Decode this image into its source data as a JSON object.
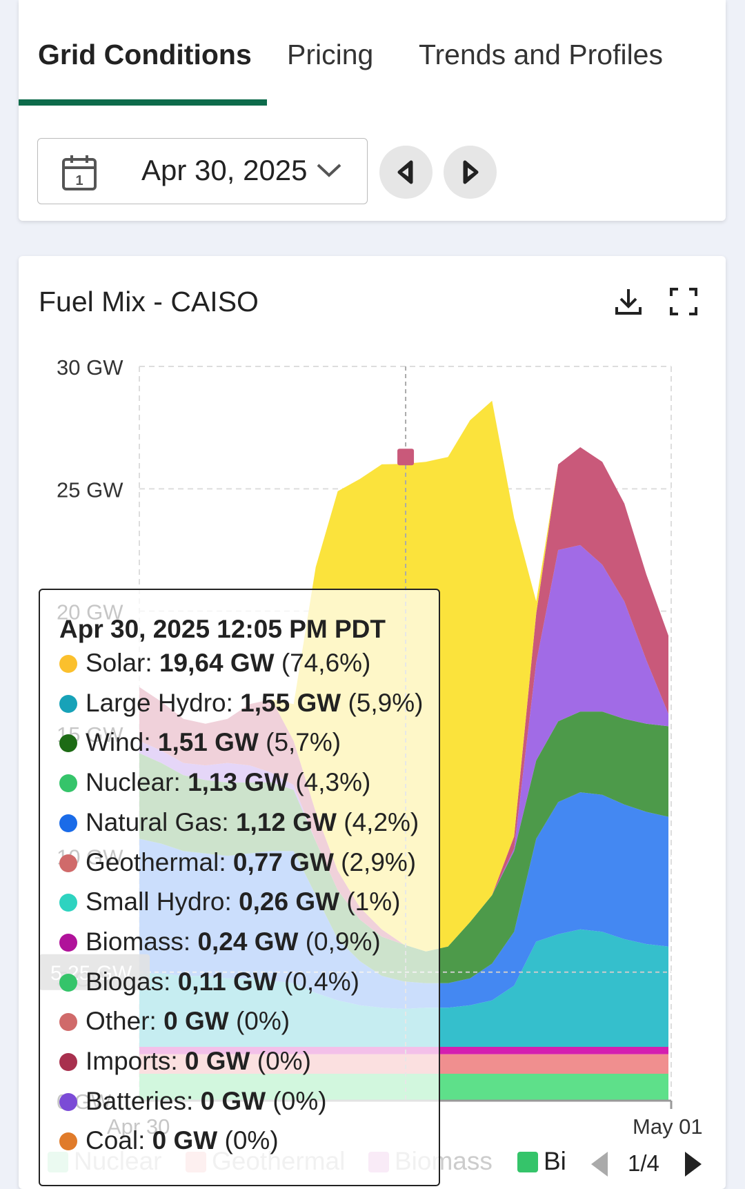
{
  "tabs": [
    {
      "label": "Grid Conditions",
      "active": true
    },
    {
      "label": "Pricing",
      "active": false
    },
    {
      "label": "Trends and Profiles",
      "active": false
    }
  ],
  "date_picker": {
    "value": "Apr 30, 2025",
    "icon": "calendar-icon"
  },
  "nav": {
    "prev_icon": "caret-left-icon",
    "next_icon": "caret-right-icon"
  },
  "chart_card": {
    "title": "Fuel Mix - CAISO",
    "download_icon": "download-icon",
    "fullscreen_icon": "fullscreen-icon"
  },
  "chart_data": {
    "type": "area",
    "stacked": true,
    "title": "Fuel Mix - CAISO",
    "y_ticks": [
      "0 GW",
      "5 GW",
      "10 GW",
      "15 GW",
      "20 GW",
      "25 GW",
      "30 GW"
    ],
    "y_range": [
      0,
      30
    ],
    "x_tick_labels": [
      "Apr 30",
      "May 01"
    ],
    "cursor_value_label": "5.25 GW",
    "hours": [
      0,
      1,
      2,
      3,
      4,
      5,
      6,
      7,
      8,
      9,
      10,
      11,
      12,
      13,
      14,
      15,
      16,
      17,
      18,
      19,
      20,
      21,
      22,
      23,
      24
    ],
    "series": [
      {
        "name": "Nuclear",
        "color": "#5ee08a",
        "values": [
          1.1,
          1.1,
          1.1,
          1.1,
          1.1,
          1.1,
          1.1,
          1.1,
          1.1,
          1.1,
          1.1,
          1.1,
          1.1,
          1.1,
          1.1,
          1.1,
          1.1,
          1.1,
          1.1,
          1.1,
          1.1,
          1.1,
          1.1,
          1.1,
          1.1
        ]
      },
      {
        "name": "Geothermal",
        "color": "#f08f8f",
        "values": [
          0.8,
          0.8,
          0.8,
          0.8,
          0.8,
          0.8,
          0.8,
          0.8,
          0.8,
          0.8,
          0.8,
          0.8,
          0.8,
          0.8,
          0.8,
          0.8,
          0.8,
          0.8,
          0.8,
          0.8,
          0.8,
          0.8,
          0.8,
          0.8,
          0.8
        ]
      },
      {
        "name": "Biomass",
        "color": "#d41fb0",
        "values": [
          0.3,
          0.3,
          0.3,
          0.3,
          0.3,
          0.3,
          0.3,
          0.3,
          0.3,
          0.3,
          0.3,
          0.3,
          0.3,
          0.3,
          0.3,
          0.3,
          0.3,
          0.3,
          0.3,
          0.3,
          0.3,
          0.3,
          0.3,
          0.3,
          0.3
        ]
      },
      {
        "name": "Large Hydro",
        "color": "#35bfcc",
        "values": [
          3.0,
          3.0,
          2.9,
          2.9,
          2.8,
          2.8,
          2.7,
          2.6,
          2.2,
          1.9,
          1.7,
          1.6,
          1.55,
          1.6,
          1.6,
          1.7,
          1.9,
          2.5,
          4.3,
          4.6,
          4.8,
          4.7,
          4.4,
          4.2,
          4.1
        ]
      },
      {
        "name": "Natural Gas",
        "color": "#4488f2",
        "values": [
          5.5,
          5.3,
          5.1,
          5.0,
          5.0,
          5.1,
          5.3,
          5.4,
          4.0,
          2.5,
          1.8,
          1.3,
          1.12,
          1.0,
          1.0,
          1.1,
          1.5,
          2.2,
          4.2,
          5.4,
          5.6,
          5.6,
          5.5,
          5.4,
          5.3
        ]
      },
      {
        "name": "Wind",
        "color": "#4d9a4a",
        "values": [
          3.5,
          3.3,
          3.1,
          3.0,
          3.0,
          2.9,
          2.8,
          2.5,
          2.2,
          2.0,
          1.7,
          1.6,
          1.51,
          1.3,
          1.5,
          2.3,
          2.8,
          3.3,
          3.2,
          3.3,
          3.3,
          3.4,
          3.5,
          3.6,
          3.7
        ]
      },
      {
        "name": "Batteries",
        "color": "#a16be6",
        "values": [
          0.5,
          0.5,
          0.5,
          0.6,
          0.8,
          0.7,
          0.4,
          0.2,
          0,
          0,
          0,
          0,
          0,
          0,
          0,
          0,
          0,
          0.1,
          4.0,
          7.0,
          6.8,
          6.0,
          4.8,
          2.6,
          0.5
        ]
      },
      {
        "name": "Imports",
        "color": "#c9597a",
        "values": [
          2.2,
          2.0,
          1.8,
          1.7,
          1.8,
          2.5,
          3.0,
          1.8,
          1.2,
          0.8,
          0.5,
          0.3,
          0,
          0,
          0,
          0,
          0,
          0.5,
          2.0,
          3.5,
          4.0,
          4.2,
          4.0,
          3.5,
          3.2
        ]
      },
      {
        "name": "Solar",
        "color": "#fbe33c",
        "values": [
          0,
          0,
          0,
          0,
          0,
          0,
          0,
          1.5,
          10.0,
          15.5,
          17.5,
          19.0,
          19.64,
          20.0,
          20.0,
          20.5,
          20.2,
          13.0,
          0.5,
          0,
          0,
          0,
          0,
          0,
          0
        ]
      }
    ],
    "legend_items": [
      {
        "label": "Nuclear",
        "color": "#b8ebcb"
      },
      {
        "label": "Geothermal",
        "color": "#f6c8c8"
      },
      {
        "label": "Biomass",
        "color": "#e9b6e2"
      },
      {
        "label": "Bi",
        "color": "#35c46a"
      }
    ],
    "legend_page": "1/4",
    "grid": true
  },
  "tooltip": {
    "title": "Apr 30, 2025 12:05 PM PDT",
    "rows": [
      {
        "name": "Solar",
        "value": "19,64 GW",
        "pct": "(74,6%)",
        "color": "#fbc02d"
      },
      {
        "name": "Large Hydro",
        "value": "1,55 GW",
        "pct": "(5,9%)",
        "color": "#17a2b8"
      },
      {
        "name": "Wind",
        "value": "1,51 GW",
        "pct": "(5,7%)",
        "color": "#1d6b15"
      },
      {
        "name": "Nuclear",
        "value": "1,13 GW",
        "pct": "(4,3%)",
        "color": "#35c46a"
      },
      {
        "name": "Natural Gas",
        "value": "1,12 GW",
        "pct": "(4,2%)",
        "color": "#1a6be8"
      },
      {
        "name": "Geothermal",
        "value": "0,77 GW",
        "pct": "(2,9%)",
        "color": "#d06a6a"
      },
      {
        "name": "Small Hydro",
        "value": "0,26 GW",
        "pct": "(1%)",
        "color": "#2ed3c0"
      },
      {
        "name": "Biomass",
        "value": "0,24 GW",
        "pct": "(0,9%)",
        "color": "#b0129a"
      },
      {
        "name": "Biogas",
        "value": "0,11 GW",
        "pct": "(0,4%)",
        "color": "#35c46a"
      },
      {
        "name": "Other",
        "value": "0 GW",
        "pct": "(0%)",
        "color": "#d06a6a"
      },
      {
        "name": "Imports",
        "value": "0 GW",
        "pct": "(0%)",
        "color": "#a8304e"
      },
      {
        "name": "Batteries",
        "value": "0 GW",
        "pct": "(0%)",
        "color": "#7b4bd6"
      },
      {
        "name": "Coal",
        "value": "0 GW",
        "pct": "(0%)",
        "color": "#e07b2a"
      }
    ]
  }
}
